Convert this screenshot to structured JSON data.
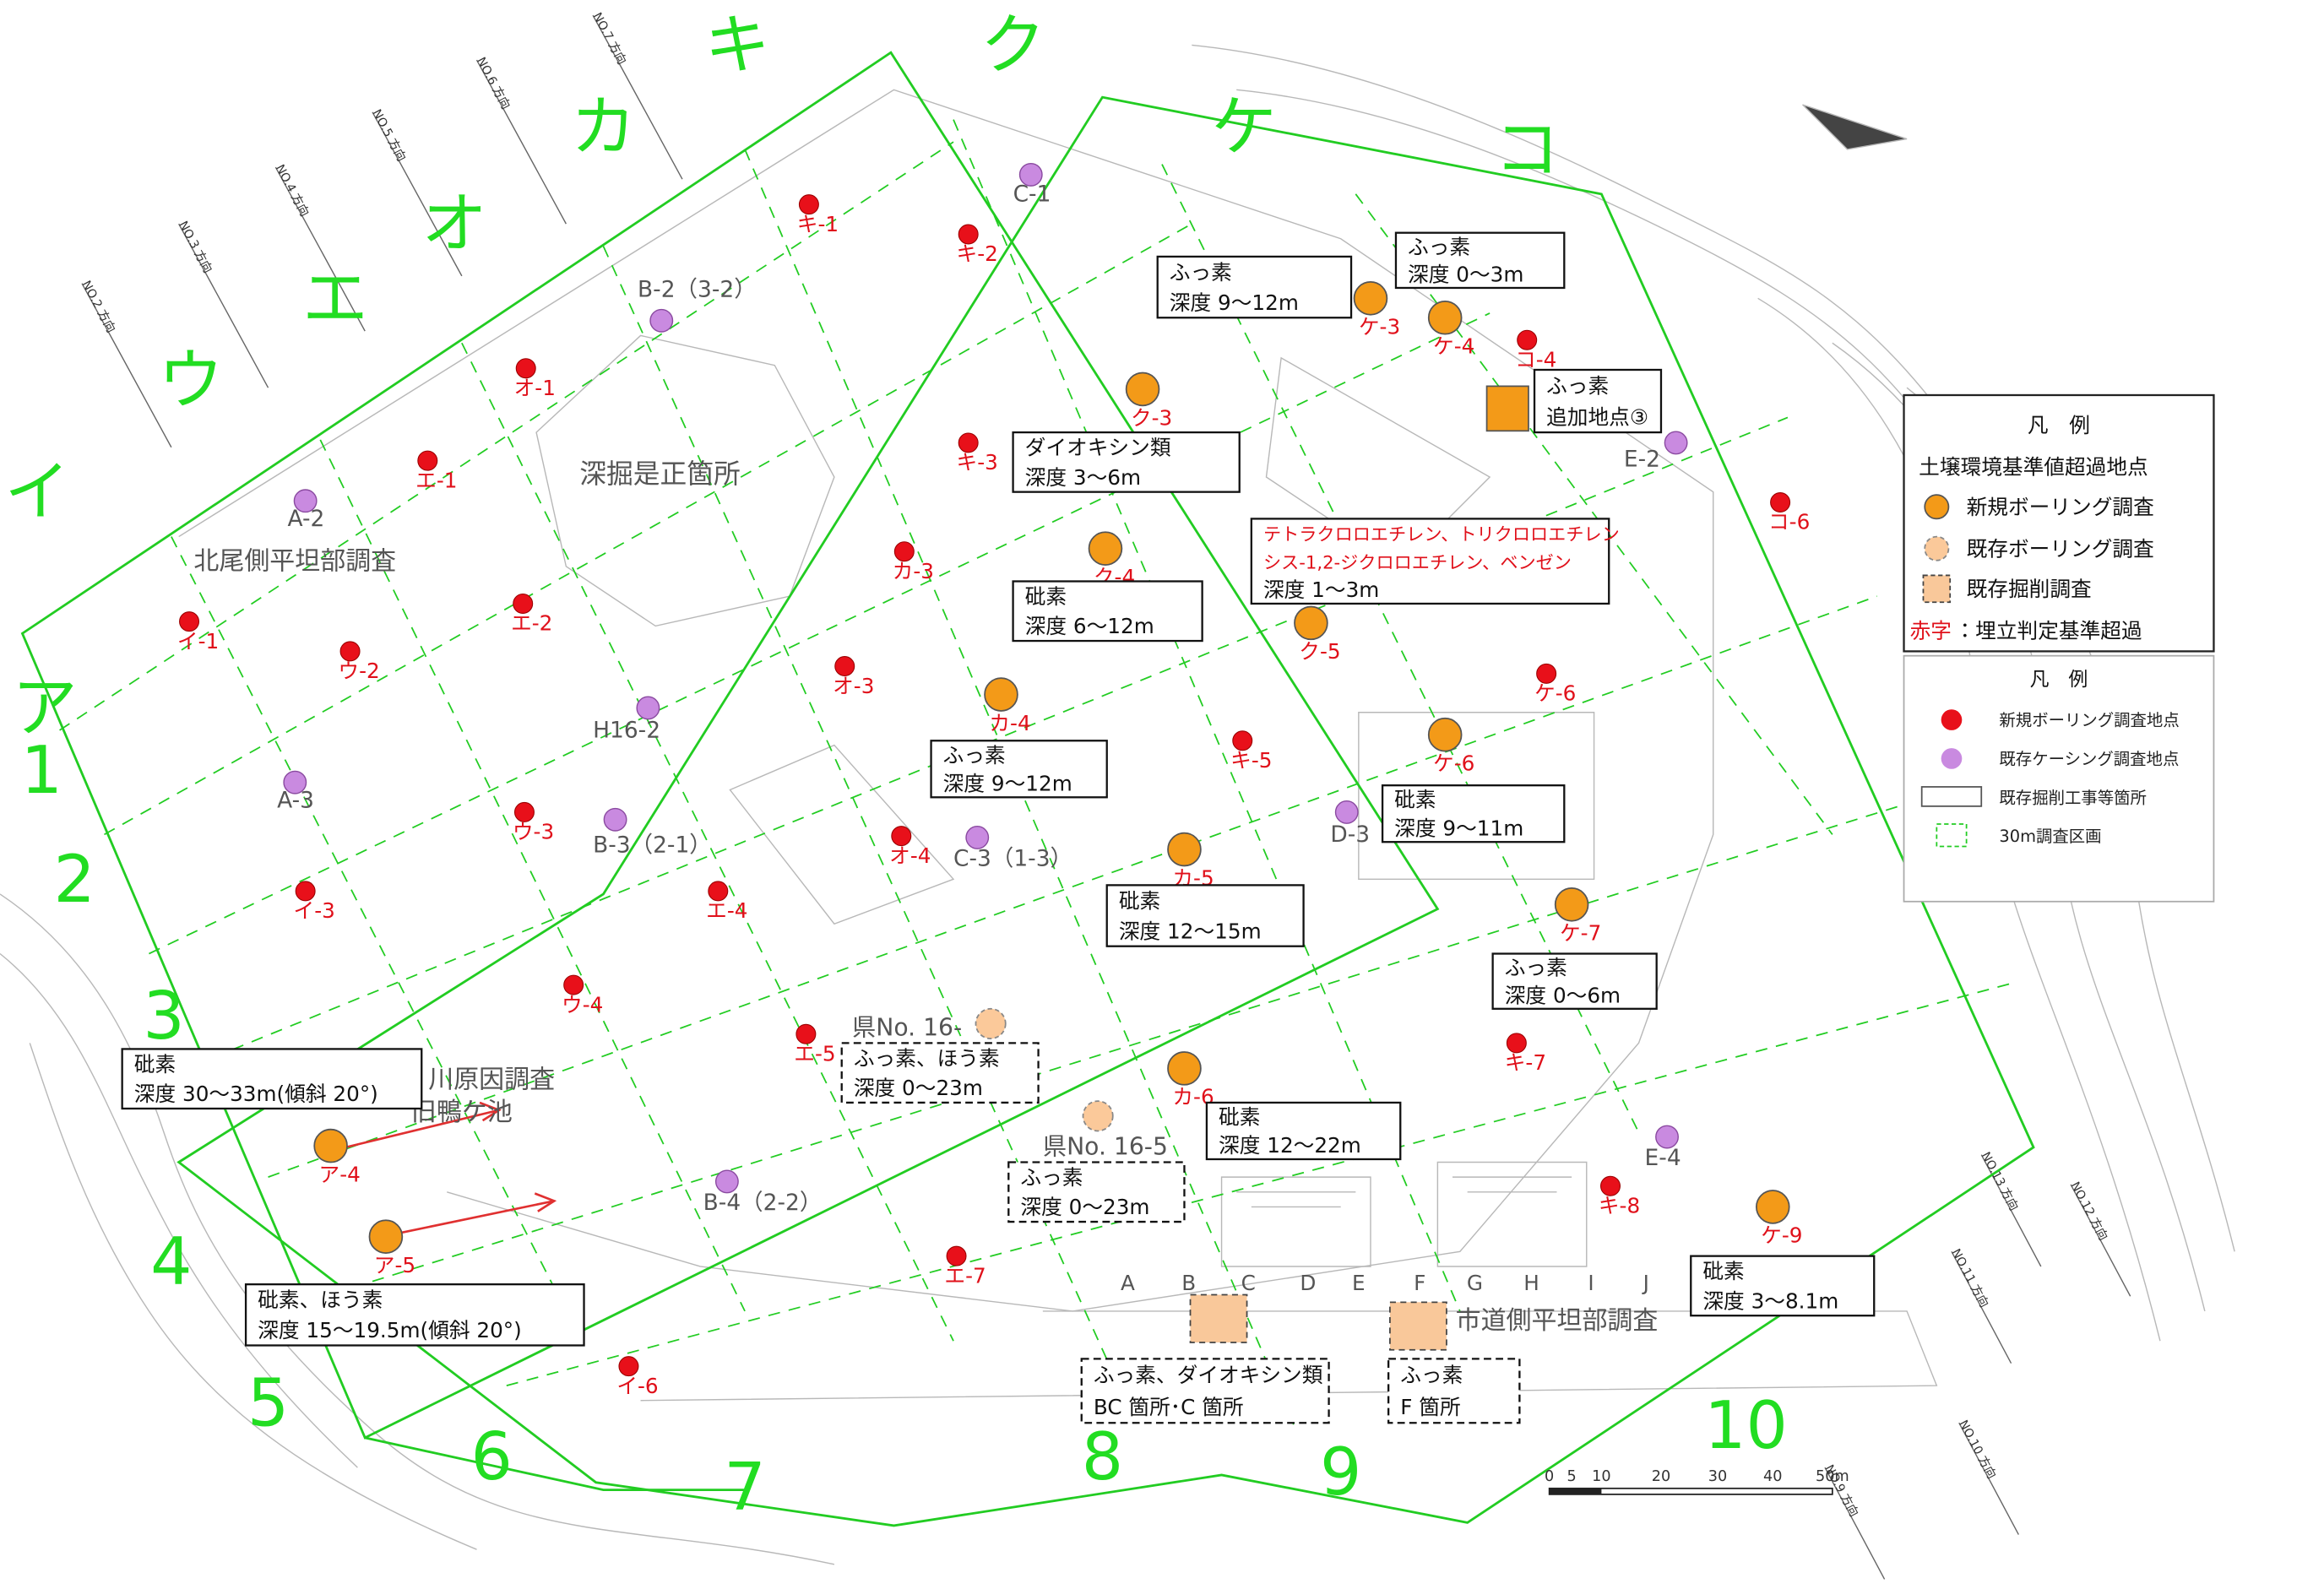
{
  "columns": [
    "ア",
    "イ",
    "ウ",
    "エ",
    "オ",
    "カ",
    "キ",
    "ク",
    "ケ",
    "コ"
  ],
  "rows": [
    "1",
    "2",
    "3",
    "4",
    "5",
    "6",
    "7",
    "8",
    "9",
    "10"
  ],
  "new_points": [
    "キ-1",
    "キ-2",
    "オ-1",
    "エ-1",
    "キ-3",
    "カ-3",
    "エ-2",
    "イ-1",
    "ウ-2",
    "オ-3",
    "ケ-6",
    "キ-5",
    "ウ-3",
    "オ-4",
    "エ-4",
    "イ-3",
    "ウ-4",
    "エ-5",
    "キ-7",
    "キ-8",
    "エ-7",
    "イ-6",
    "コ-4",
    "コ-6"
  ],
  "exceed_points": [
    "ケ-3",
    "ケ-4",
    "ク-3",
    "ク-4",
    "カ-4",
    "ク-5",
    "ケ-6",
    "カ-5",
    "ケ-7",
    "カ-6",
    "ア-4",
    "ア-5",
    "ケ-9"
  ],
  "casing_points": [
    "C-1",
    "B-2（3-2）",
    "A-2",
    "H16-2",
    "A-3",
    "B-3（2-1）",
    "C-3（1-3）",
    "D-3",
    "B-4（2-2）",
    "E-2",
    "E-4"
  ],
  "existing_borings": [
    "県No. 16-",
    "県No. 16-5"
  ],
  "callouts": [
    {
      "lines": [
        "ふっ素",
        "深度 9～12m"
      ]
    },
    {
      "lines": [
        "ふっ素",
        "深度 0～3m"
      ]
    },
    {
      "lines": [
        "ふっ素",
        "追加地点③"
      ]
    },
    {
      "lines": [
        "ダイオキシン類",
        "深度 3～6m"
      ]
    },
    {
      "lines": [
        "テトラクロロエチレン、トリクロロエチレン",
        "シス-1,2-ジクロロエチレン、ベンゼン",
        "深度 1～3m"
      ]
    },
    {
      "lines": [
        "砒素",
        "深度 6～12m"
      ]
    },
    {
      "lines": [
        "ふっ素",
        "深度 9～12m"
      ]
    },
    {
      "lines": [
        "砒素",
        "深度 9～11m"
      ]
    },
    {
      "lines": [
        "砒素",
        "深度 12～15m"
      ]
    },
    {
      "lines": [
        "ふっ素",
        "深度 0～6m"
      ]
    },
    {
      "lines": [
        "ふっ素、ほう素",
        "深度 0～23m"
      ]
    },
    {
      "lines": [
        "砒素",
        "深度 30～33m(傾斜 20°)"
      ]
    },
    {
      "lines": [
        "砒素",
        "深度 12～22m"
      ]
    },
    {
      "lines": [
        "ふっ素",
        "深度 0～23m"
      ]
    },
    {
      "lines": [
        "砒素、ほう素",
        "深度 15～19.5m(傾斜 20°)"
      ]
    },
    {
      "lines": [
        "砒素",
        "深度 3～8.1m"
      ]
    },
    {
      "lines": [
        "ふっ素、ダイオキシン類",
        "BC 箇所･C 箇所"
      ]
    },
    {
      "lines": [
        "ふっ素",
        "F 箇所"
      ]
    }
  ],
  "areas": [
    "深掘是正箇所",
    "北尾側平坦部調査",
    "川原因調査",
    "旧鴨ケ池",
    "市道側平坦部調査"
  ],
  "sections": [
    "A",
    "B",
    "C",
    "D",
    "E",
    "F",
    "G",
    "H",
    "I",
    "J"
  ],
  "directions": [
    "NO.2 方向",
    "NO.3 方向",
    "NO.4 方向",
    "NO.5 方向",
    "NO.6 方向",
    "NO.7 方向",
    "NO.13 方向",
    "NO.12 方向",
    "NO.11 方向",
    "NO.10 方向",
    "NO.9 方向"
  ],
  "scale": [
    "0",
    "5",
    "10",
    "20",
    "30",
    "40",
    "50m"
  ],
  "legend1": {
    "title": "凡　例",
    "heading": "土壌環境基準値超過地点",
    "items": [
      "新規ボーリング調査",
      "既存ボーリング調査",
      "既存掘削調査"
    ],
    "note_key": "赤字",
    "note": "：埋立判定基準超過"
  },
  "legend2": {
    "title": "凡　例",
    "items": [
      "新規ボーリング調査地点",
      "既存ケーシング調査地点",
      "既存掘削工事等箇所",
      "30m調査区画"
    ]
  }
}
